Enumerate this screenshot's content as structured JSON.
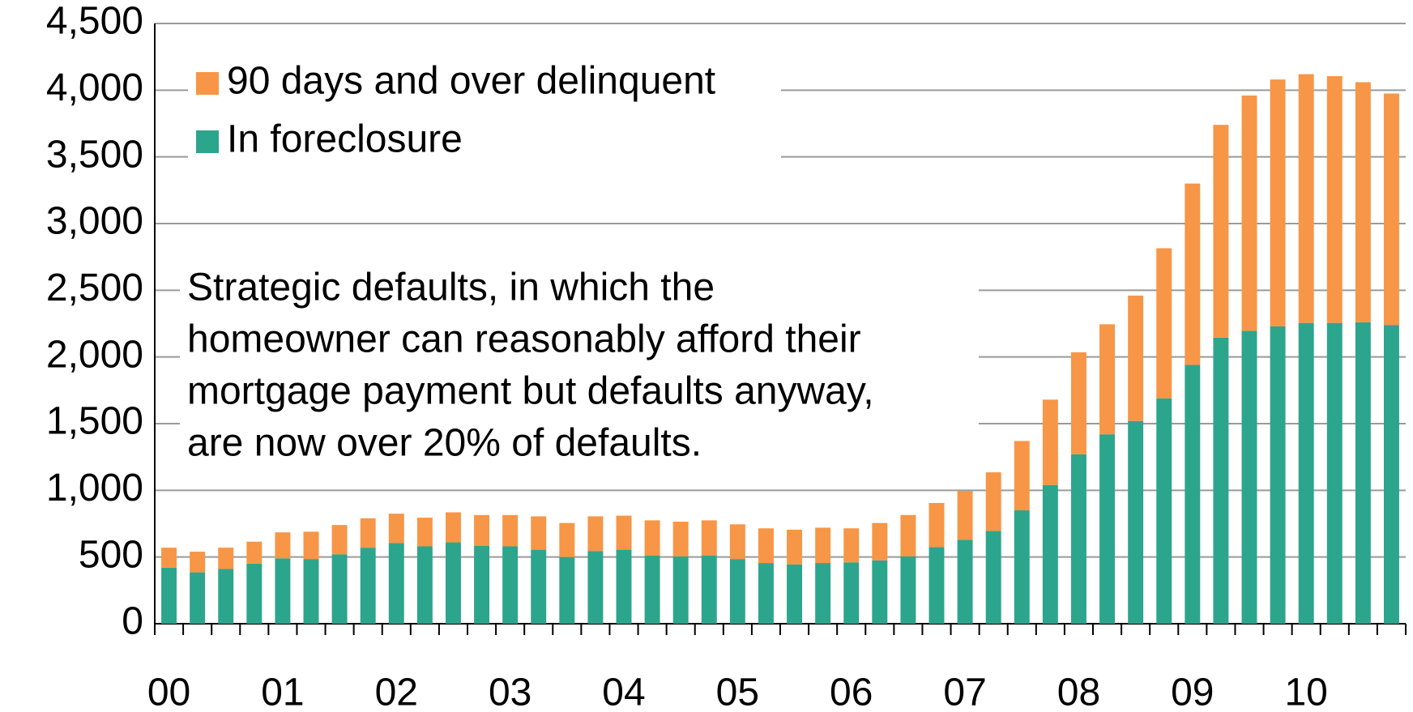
{
  "chart_data": {
    "type": "stacked_bar",
    "categories": [
      "00",
      null,
      null,
      null,
      "01",
      null,
      null,
      null,
      "02",
      null,
      null,
      null,
      "03",
      null,
      null,
      null,
      "04",
      null,
      null,
      null,
      "05",
      null,
      null,
      null,
      "06",
      null,
      null,
      null,
      "07",
      null,
      null,
      null,
      "08",
      null,
      null,
      null,
      "09",
      null,
      null,
      null,
      "10",
      null,
      null,
      null
    ],
    "series": [
      {
        "name": "90 days and over delinquent",
        "color": "#f79646",
        "values": [
          150,
          155,
          160,
          165,
          195,
          205,
          220,
          220,
          220,
          215,
          225,
          230,
          235,
          250,
          255,
          260,
          255,
          265,
          260,
          265,
          260,
          260,
          260,
          265,
          255,
          280,
          310,
          330,
          365,
          440,
          520,
          640,
          765,
          825,
          940,
          1125,
          1360,
          1595,
          1765,
          1850,
          1865,
          1850,
          1800,
          1735
        ]
      },
      {
        "name": "In foreclosure",
        "color": "#2ca58d",
        "values": [
          420,
          385,
          410,
          450,
          490,
          485,
          520,
          570,
          605,
          580,
          610,
          585,
          580,
          555,
          500,
          545,
          555,
          510,
          505,
          510,
          485,
          455,
          445,
          455,
          460,
          475,
          505,
          575,
          630,
          695,
          850,
          1040,
          1270,
          1420,
          1520,
          1690,
          1940,
          2145,
          2195,
          2230,
          2255,
          2255,
          2260,
          2240
        ]
      }
    ],
    "ylim": [
      0,
      4500
    ],
    "yticks": [
      0,
      500,
      {
        "value": 1000,
        "label": "1,000"
      },
      {
        "value": 1500,
        "label": "1,500"
      },
      {
        "value": 2000,
        "label": "2,000"
      },
      {
        "value": 2500,
        "label": "2,500"
      },
      {
        "value": 3000,
        "label": "3,000"
      },
      {
        "value": 3500,
        "label": "3,500"
      },
      {
        "value": 4000,
        "label": "4,000"
      },
      {
        "value": 4500,
        "label": "4,500"
      }
    ],
    "grid": true,
    "legend": "top-left",
    "annotation": [
      "Strategic defaults, in which the",
      "homeowner can reasonably afford their",
      "mortgage payment but defaults anyway,",
      "are now over 20% of defaults."
    ]
  }
}
